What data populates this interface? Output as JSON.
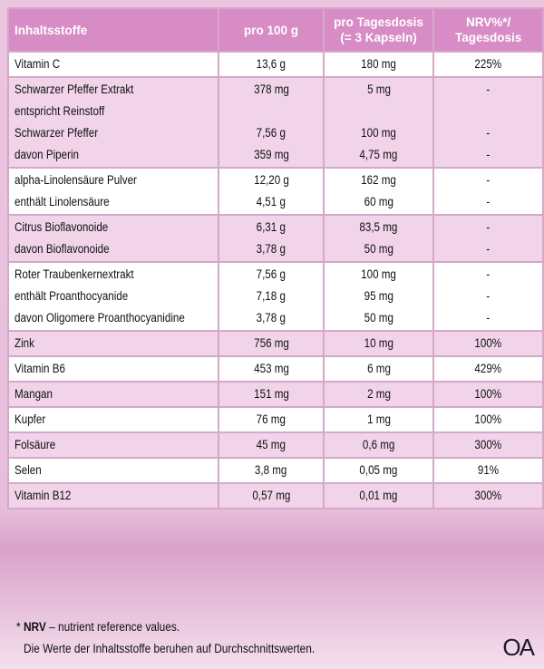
{
  "table": {
    "header": [
      "Inhaltsstoffe",
      "pro 100 g",
      [
        "pro Tagesdosis",
        "(= 3 Kapseln)"
      ],
      [
        "NRV%*/",
        "Tagesdosis"
      ]
    ],
    "groups": [
      [
        [
          "Vitamin C",
          "13,6 g",
          "180 mg",
          "225%"
        ]
      ],
      [
        [
          "Schwarzer Pfeffer Extrakt",
          "378 mg",
          "5 mg",
          "-"
        ],
        [
          "entspricht Reinstoff",
          null,
          null,
          null
        ],
        [
          "Schwarzer Pfeffer",
          "7,56 g",
          "100 mg",
          "-"
        ],
        [
          "davon Piperin",
          "359 mg",
          "4,75 mg",
          "-"
        ]
      ],
      [
        [
          "alpha-Linolensäure Pulver",
          "12,20 g",
          "162 mg",
          "-"
        ],
        [
          "enthält Linolensäure",
          "4,51 g",
          "60 mg",
          "-"
        ]
      ],
      [
        [
          "Citrus Bioflavonoide",
          "6,31 g",
          "83,5 mg",
          "-"
        ],
        [
          "davon Bioflavonoide",
          "3,78 g",
          "50 mg",
          "-"
        ]
      ],
      [
        [
          "Roter Traubenkernextrakt",
          "7,56 g",
          "100 mg",
          "-"
        ],
        [
          "enthält Proanthocyanide",
          "7,18 g",
          "95 mg",
          "-"
        ],
        [
          "davon Oligomere Proanthocyanidine",
          "3,78 g",
          "50 mg",
          "-"
        ]
      ],
      [
        [
          "Zink",
          "756 mg",
          "10 mg",
          "100%"
        ]
      ],
      [
        [
          "Vitamin B6",
          "453 mg",
          "6 mg",
          "429%"
        ]
      ],
      [
        [
          "Mangan",
          "151 mg",
          "2 mg",
          "100%"
        ]
      ],
      [
        [
          "Kupfer",
          "76 mg",
          "1 mg",
          "100%"
        ]
      ],
      [
        [
          "Folsäure",
          "45 mg",
          "0,6 mg",
          "300%"
        ]
      ],
      [
        [
          "Selen",
          "3,8 mg",
          "0,05 mg",
          "91%"
        ]
      ],
      [
        [
          "Vitamin B12",
          "0,57 mg",
          "0,01 mg",
          "300%"
        ]
      ]
    ]
  },
  "footnote": {
    "star": "*",
    "term": "NRV",
    "text": "– nutrient reference values.",
    "note": "Die Werte der Inhaltsstoffe beruhen auf Durchschnittswerten."
  },
  "logo": "OA"
}
